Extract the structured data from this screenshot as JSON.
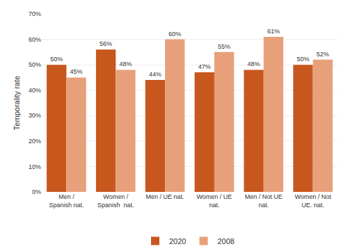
{
  "chart_data": {
    "type": "bar",
    "categories": [
      "Men /\nSpanish nat.",
      "Women /\nSpanish  nat.",
      "Men / UE nat.",
      "Women / UE\nnat.",
      "Men / Not UE\nnat.",
      "Women / Not\nUE. nat."
    ],
    "series": [
      {
        "name": "2020",
        "color": "#C8571E",
        "values": [
          50,
          56,
          44,
          47,
          48,
          50
        ],
        "value_labels": [
          "50%",
          "56%",
          "44%",
          "47%",
          "48%",
          "50%"
        ]
      },
      {
        "name": "2008",
        "color": "#E8A07A",
        "values": [
          45,
          48,
          60,
          55,
          61,
          52
        ],
        "value_labels": [
          "45%",
          "48%",
          "60%",
          "55%",
          "61%",
          "52%"
        ]
      }
    ],
    "ylabel": "Temporality rate",
    "ylim": [
      0,
      70
    ],
    "yticks": [
      {
        "value": 0,
        "label": "0%"
      },
      {
        "value": 10,
        "label": "10%"
      },
      {
        "value": 20,
        "label": "20%"
      },
      {
        "value": 30,
        "label": "30%"
      },
      {
        "value": 40,
        "label": "40%"
      },
      {
        "value": 50,
        "label": "50%"
      },
      {
        "value": 60,
        "label": "60%"
      },
      {
        "value": 70,
        "label": "70%"
      }
    ],
    "grid": true,
    "legend": "bottom",
    "data_labels": true
  }
}
